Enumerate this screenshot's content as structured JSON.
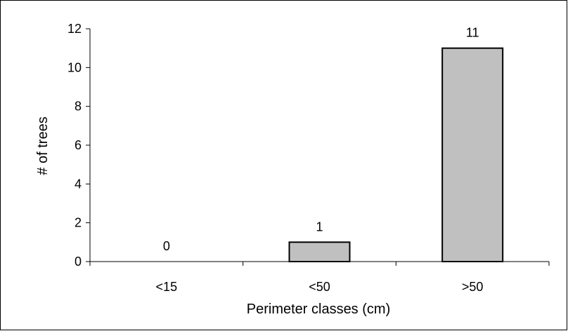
{
  "chart_data": {
    "type": "bar",
    "title": "",
    "categories": [
      "<15",
      "<50",
      ">50"
    ],
    "values": [
      0,
      1,
      11
    ],
    "data_labels": [
      "0",
      "1",
      "11"
    ],
    "xlabel": "Perimeter classes (cm)",
    "ylabel": "# of trees",
    "ylim": [
      0,
      12
    ],
    "yticks": [
      0,
      2,
      4,
      6,
      8,
      10,
      12
    ],
    "grid": false,
    "legend": "none",
    "colors": {
      "bar_fill": "#c0c0c0",
      "bar_stroke": "#000000",
      "axis": "#000000",
      "text": "#000000",
      "background": "#ffffff"
    }
  }
}
